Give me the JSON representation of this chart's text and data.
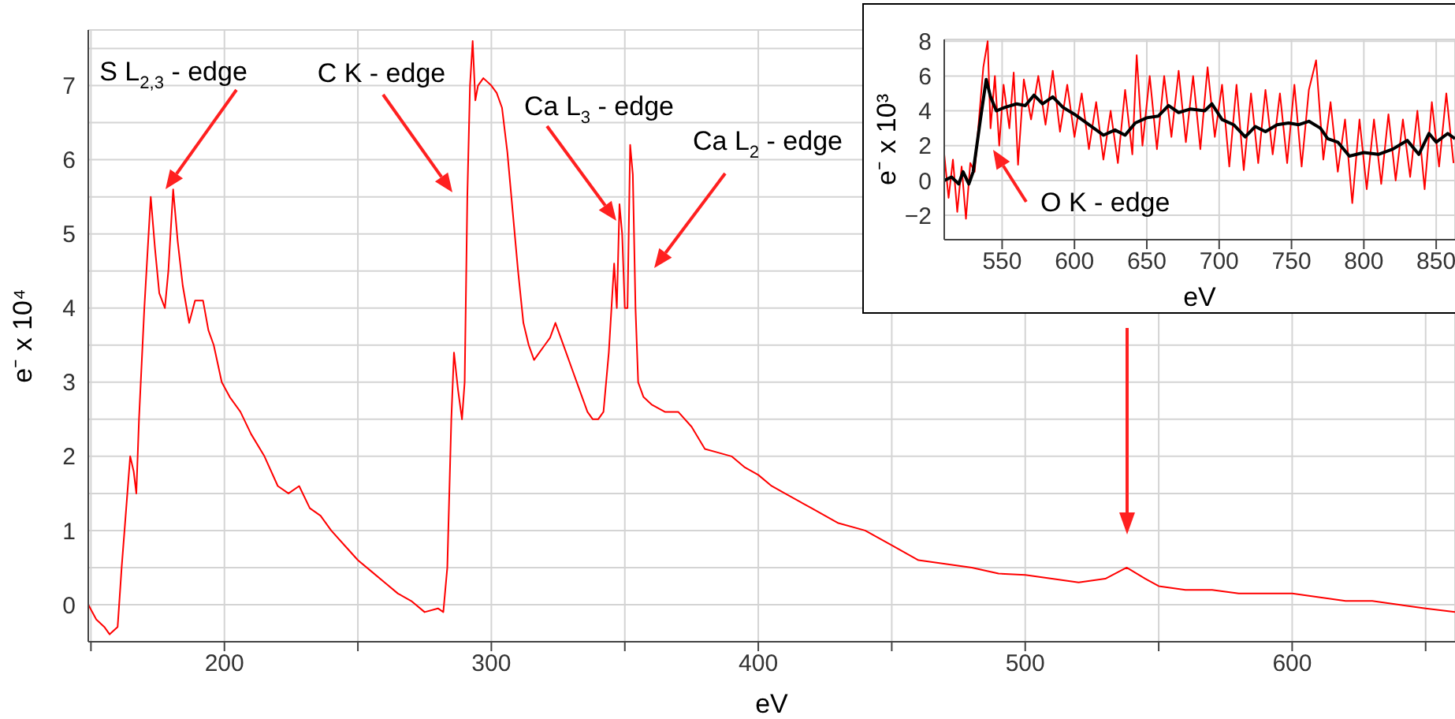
{
  "chart_data": [
    {
      "type": "line",
      "xlabel": "eV",
      "ylabel": "e⁻ x 10⁴",
      "xlim": [
        149,
        661
      ],
      "ylim": [
        -0.5,
        7.75
      ],
      "xticks": [
        {
          "value": 150,
          "label": null
        },
        200,
        {
          "value": 250,
          "label": null
        },
        300,
        {
          "value": 350,
          "label": null
        },
        400,
        {
          "value": 450,
          "label": null
        },
        500,
        {
          "value": 550,
          "label": null
        },
        600,
        {
          "value": 650,
          "label": null
        }
      ],
      "yticks": [
        0,
        {
          "value": 0.5,
          "label": null
        },
        1,
        {
          "value": 1.5,
          "label": null
        },
        2,
        {
          "value": 2.5,
          "label": null
        },
        3,
        {
          "value": 3.5,
          "label": null
        },
        4,
        {
          "value": 4.5,
          "label": null
        },
        5,
        {
          "value": 5.5,
          "label": null
        },
        6,
        {
          "value": 6.5,
          "label": null
        },
        7,
        {
          "value": 7.5,
          "label": null
        }
      ],
      "grid": true,
      "legend": false,
      "marker": "none",
      "line_style": "solid",
      "annotations": [
        "S L$_{2,3}$ - edge",
        "C K - edge",
        "Ca L$_{3}$ - edge",
        "Ca L$_{2}$ - edge"
      ],
      "x": [
        149,
        152,
        155,
        157,
        160,
        161.5,
        163,
        164.7,
        166,
        167,
        168,
        170,
        172.4,
        174,
        175.6,
        177.7,
        179,
        180.8,
        182.5,
        184.4,
        186.8,
        189,
        192,
        194,
        196,
        199,
        202,
        206,
        210,
        215,
        220,
        224,
        228,
        232,
        236,
        240,
        245,
        250,
        255,
        260,
        265,
        270,
        275,
        280,
        282,
        283.5,
        285,
        286,
        287.5,
        289,
        290,
        291,
        292,
        293,
        294,
        295,
        297,
        300,
        302,
        304,
        306,
        308,
        310,
        312,
        314,
        316,
        318,
        320,
        322,
        324,
        326,
        328,
        330,
        332,
        334,
        336,
        338,
        340,
        342,
        344,
        346,
        347,
        348,
        349,
        350,
        351,
        352,
        353,
        354,
        355,
        357,
        360,
        365,
        370,
        375,
        380,
        385,
        390,
        395,
        400,
        405,
        410,
        420,
        430,
        440,
        450,
        460,
        470,
        480,
        490,
        500,
        510,
        520,
        530,
        538,
        545,
        550,
        560,
        570,
        580,
        590,
        600,
        610,
        620,
        630,
        640,
        650,
        661
      ],
      "series": [
        {
          "color": "#ff0000",
          "values": [
            0.0,
            -0.2,
            -0.3,
            -0.4,
            -0.3,
            0.5,
            1.2,
            2.0,
            1.8,
            1.5,
            2.5,
            4.0,
            5.5,
            4.8,
            4.2,
            4.0,
            4.5,
            5.6,
            4.9,
            4.3,
            3.8,
            4.1,
            4.1,
            3.7,
            3.5,
            3.0,
            2.8,
            2.6,
            2.3,
            2.0,
            1.6,
            1.5,
            1.6,
            1.3,
            1.2,
            1.0,
            0.8,
            0.6,
            0.45,
            0.3,
            0.15,
            0.05,
            -0.1,
            -0.05,
            -0.1,
            0.5,
            2.5,
            3.4,
            2.9,
            2.5,
            3.0,
            5.5,
            7.0,
            7.6,
            6.8,
            7.0,
            7.1,
            7.0,
            6.9,
            6.7,
            6.1,
            5.3,
            4.5,
            3.8,
            3.5,
            3.3,
            3.4,
            3.5,
            3.6,
            3.8,
            3.6,
            3.4,
            3.2,
            3.0,
            2.8,
            2.6,
            2.5,
            2.5,
            2.6,
            3.4,
            4.6,
            4.0,
            5.4,
            5.0,
            4.0,
            4.0,
            6.2,
            5.8,
            4.0,
            3.0,
            2.8,
            2.7,
            2.6,
            2.6,
            2.4,
            2.1,
            2.05,
            2.0,
            1.85,
            1.75,
            1.6,
            1.5,
            1.3,
            1.1,
            1.0,
            0.8,
            0.6,
            0.55,
            0.5,
            0.42,
            0.4,
            0.35,
            0.3,
            0.35,
            0.5,
            0.35,
            0.25,
            0.2,
            0.2,
            0.15,
            0.15,
            0.15,
            0.1,
            0.05,
            0.05,
            0.0,
            -0.05,
            -0.1
          ]
        }
      ]
    },
    {
      "type": "line",
      "xlabel": "eV",
      "ylabel": "e⁻ x 10³",
      "xlim": [
        510,
        863
      ],
      "ylim": [
        -3.4,
        8.1
      ],
      "xticks": [
        550,
        600,
        650,
        700,
        750,
        800,
        850
      ],
      "yticks": [
        -2,
        0,
        2,
        4,
        6,
        8
      ],
      "grid": true,
      "legend": false,
      "marker": "none",
      "line_style": "solid",
      "annotations": [
        "O K - edge"
      ],
      "series": [
        {
          "color": "#ff0000",
          "x": [
            510,
            513,
            516,
            519,
            522,
            525,
            528,
            531,
            534,
            537,
            540,
            542,
            545,
            548,
            551,
            555,
            558,
            561,
            565,
            570,
            575,
            580,
            585,
            590,
            595,
            600,
            605,
            610,
            615,
            620,
            625,
            630,
            635,
            640,
            643,
            647,
            652,
            657,
            662,
            667,
            672,
            677,
            682,
            687,
            692,
            697,
            702,
            707,
            712,
            717,
            722,
            727,
            732,
            737,
            742,
            747,
            752,
            757,
            762,
            767,
            772,
            777,
            782,
            787,
            792,
            797,
            802,
            807,
            812,
            817,
            822,
            827,
            832,
            837,
            842,
            847,
            852,
            857,
            862
          ],
          "values": [
            1.5,
            -1.0,
            1.2,
            -1.8,
            0.8,
            -2.2,
            1.0,
            0.5,
            3.5,
            6.5,
            8.0,
            3.0,
            6.0,
            2.0,
            5.5,
            3.0,
            6.2,
            0.9,
            5.8,
            3.5,
            6.0,
            3.2,
            6.3,
            2.8,
            5.5,
            2.5,
            5.0,
            1.8,
            4.5,
            1.2,
            4.0,
            1.0,
            5.2,
            1.5,
            7.2,
            2.0,
            6.0,
            1.8,
            6.0,
            2.5,
            6.3,
            2.2,
            6.0,
            1.8,
            6.5,
            2.5,
            5.5,
            0.8,
            5.5,
            0.6,
            5.0,
            1.0,
            5.2,
            1.5,
            5.0,
            1.0,
            5.5,
            0.8,
            5.2,
            6.9,
            1.2,
            4.5,
            0.5,
            3.5,
            -1.3,
            3.5,
            -0.5,
            3.5,
            -0.2,
            3.8,
            0.0,
            3.5,
            0.2,
            4.0,
            -0.5,
            4.5,
            0.8,
            5.0,
            1.0
          ]
        },
        {
          "color": "#000000",
          "x": [
            510,
            515,
            520,
            523,
            527,
            530,
            535,
            539,
            542,
            546,
            552,
            560,
            566,
            572,
            578,
            585,
            592,
            600,
            610,
            620,
            628,
            635,
            642,
            650,
            658,
            665,
            672,
            680,
            690,
            695,
            702,
            710,
            718,
            725,
            732,
            740,
            748,
            755,
            762,
            770,
            775,
            782,
            790,
            800,
            810,
            820,
            830,
            838,
            845,
            850,
            858,
            863
          ],
          "values": [
            0,
            0.2,
            -0.2,
            0.5,
            -0.2,
            0.5,
            3.5,
            5.8,
            4.8,
            4.0,
            4.2,
            4.4,
            4.3,
            4.9,
            4.4,
            4.8,
            4.2,
            3.8,
            3.2,
            2.6,
            2.9,
            2.6,
            3.3,
            3.6,
            3.7,
            4.3,
            3.9,
            4.1,
            4.0,
            4.4,
            3.5,
            3.2,
            2.5,
            3.1,
            2.8,
            3.2,
            3.3,
            3.2,
            3.4,
            3.0,
            2.4,
            2.2,
            1.4,
            1.6,
            1.5,
            1.8,
            2.3,
            1.5,
            2.7,
            2.2,
            2.7,
            2.4
          ]
        }
      ]
    }
  ]
}
